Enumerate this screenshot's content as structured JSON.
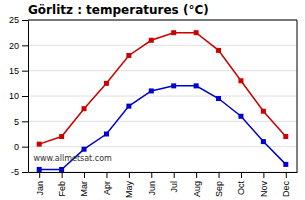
{
  "chart_data": {
    "type": "line",
    "title": "Görlitz : temperatures (°C)",
    "categories": [
      "Jan",
      "Feb",
      "Mar",
      "Apr",
      "May",
      "Jun",
      "Jul",
      "Aug",
      "Sep",
      "Oct",
      "Nov",
      "Dec"
    ],
    "series": [
      {
        "color": "#cc0000",
        "values": [
          0.5,
          2.0,
          7.5,
          12.5,
          18.0,
          21.0,
          22.5,
          22.5,
          19.0,
          13.0,
          7.0,
          2.0
        ]
      },
      {
        "color": "#0000cc",
        "values": [
          -4.5,
          -4.5,
          -0.5,
          2.5,
          8.0,
          11.0,
          12.0,
          12.0,
          9.5,
          6.0,
          1.0,
          -3.5
        ]
      }
    ],
    "ylim": [
      -5,
      25
    ],
    "yticks": [
      -5,
      0,
      5,
      10,
      15,
      20,
      25
    ],
    "grid": true,
    "marker": "square",
    "annotations": [
      "www.allmetsat.com"
    ]
  }
}
